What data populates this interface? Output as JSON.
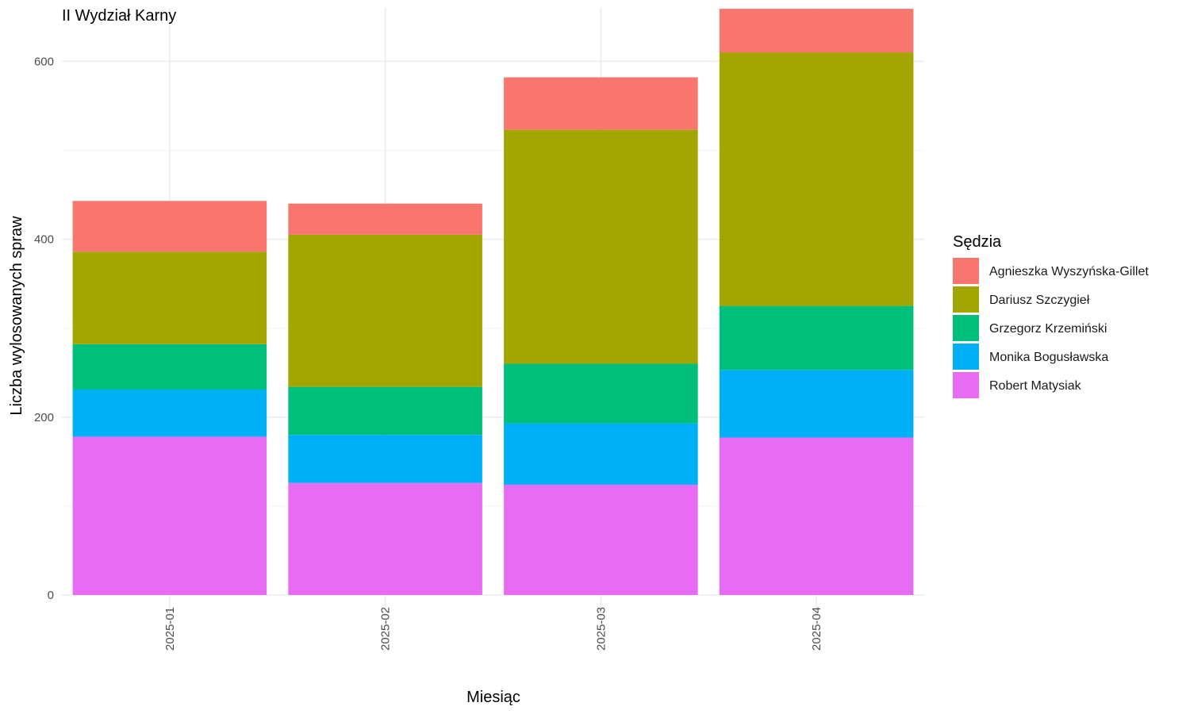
{
  "chart_data": {
    "type": "bar",
    "stacked": true,
    "title": "II Wydział Karny",
    "xlabel": "Miesiąc",
    "ylabel": "Liczba wylosowanych spraw",
    "categories": [
      "2025-01",
      "2025-02",
      "2025-03",
      "2025-04"
    ],
    "ylim": [
      0,
      660
    ],
    "yticks": [
      0,
      200,
      400,
      600
    ],
    "grid": true,
    "legend": {
      "title": "Sędzia",
      "position": "right"
    },
    "series": [
      {
        "name": "Robert Matysiak",
        "color": "#E76BF3",
        "values": [
          178,
          126,
          124,
          177
        ]
      },
      {
        "name": "Monika Bogusławska",
        "color": "#00B0F6",
        "values": [
          53,
          54,
          69,
          76
        ]
      },
      {
        "name": "Grzegorz Krzemiński",
        "color": "#00BF7D",
        "values": [
          51,
          54,
          67,
          72
        ]
      },
      {
        "name": "Dariusz Szczygieł",
        "color": "#A3A500",
        "values": [
          104,
          171,
          263,
          285
        ]
      },
      {
        "name": "Agnieszka Wyszyńska-Gillet",
        "color": "#F8766D",
        "values": [
          57,
          35,
          59,
          49
        ]
      }
    ]
  }
}
